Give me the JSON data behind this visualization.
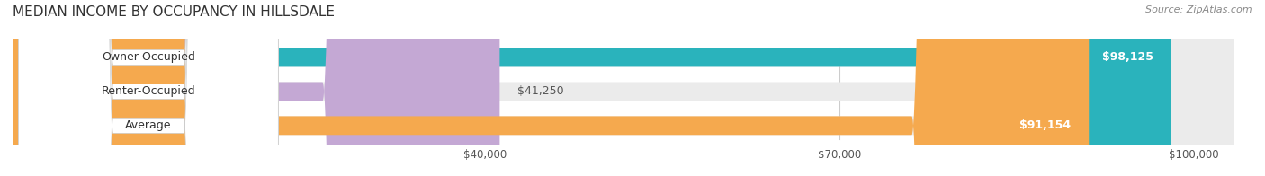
{
  "title": "MEDIAN INCOME BY OCCUPANCY IN HILLSDALE",
  "source": "Source: ZipAtlas.com",
  "categories": [
    "Owner-Occupied",
    "Renter-Occupied",
    "Average"
  ],
  "values": [
    98125,
    41250,
    91154
  ],
  "colors": [
    "#2ab3bc",
    "#c4a8d4",
    "#f5a94e"
  ],
  "bar_bg_color": "#f0f0f0",
  "value_labels": [
    "$98,125",
    "$41,250",
    "$91,154"
  ],
  "x_ticks": [
    40000,
    70000,
    100000
  ],
  "x_tick_labels": [
    "$40,000",
    "$70,000",
    "$100,000"
  ],
  "x_min": 0,
  "x_max": 105000,
  "title_fontsize": 11,
  "source_fontsize": 8,
  "label_fontsize": 9,
  "value_fontsize": 9,
  "background_color": "#ffffff"
}
